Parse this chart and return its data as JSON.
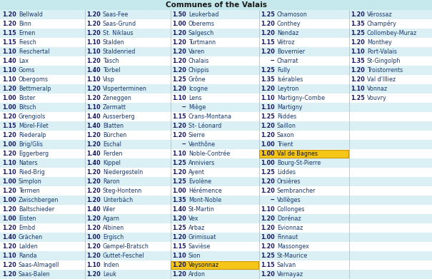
{
  "title": "Communes of the Valais",
  "background_color": "#c5e8ed",
  "row_bg_light": "#daf0f4",
  "row_bg_white": "#ffffff",
  "highlight_orange": "#f5c518",
  "text_color": "#1a1a5e",
  "name_color": "#1a3a6e",
  "sep_color": "#a0c8d0",
  "title_color": "#1a1a1a",
  "columns": [
    {
      "coef": "1.20",
      "name": "Bellwald"
    },
    {
      "coef": "1.20",
      "name": "Binn"
    },
    {
      "coef": "1.15",
      "name": "Ernen"
    },
    {
      "coef": "1.15",
      "name": "Fiesch"
    },
    {
      "coef": "1.10",
      "name": "Fieschertal"
    },
    {
      "coef": "1.40",
      "name": "Lax"
    },
    {
      "coef": "1.10",
      "name": "Goms"
    },
    {
      "coef": "1.10",
      "name": "Obergoms"
    },
    {
      "coef": "1.20",
      "name": "Bettmeralp"
    },
    {
      "coef": "1.00",
      "name": "Bister"
    },
    {
      "coef": "1.00",
      "name": "Bitsch"
    },
    {
      "coef": "1.20",
      "name": "Grengiols"
    },
    {
      "coef": "1.15",
      "name": "Mörel-Filet"
    },
    {
      "coef": "1.20",
      "name": "Riederalp"
    },
    {
      "coef": "1.00",
      "name": "Brig/Glis"
    },
    {
      "coef": "1.20",
      "name": "Eggerberg"
    },
    {
      "coef": "1.10",
      "name": "Naters"
    },
    {
      "coef": "1.10",
      "name": "Ried-Brig"
    },
    {
      "coef": "1.00",
      "name": "Simplon"
    },
    {
      "coef": "1.20",
      "name": "Termen"
    },
    {
      "coef": "1.00",
      "name": "Zwischbergen"
    },
    {
      "coef": "1.20",
      "name": "Baltschieder"
    },
    {
      "coef": "1.00",
      "name": "Eisten"
    },
    {
      "coef": "1.20",
      "name": "Embd"
    },
    {
      "coef": "1.40",
      "name": "Grächen"
    },
    {
      "coef": "1.20",
      "name": "Lalden"
    },
    {
      "coef": "1.10",
      "name": "Randa"
    },
    {
      "coef": "1.20",
      "name": "Saas-Almagell"
    },
    {
      "coef": "1.20",
      "name": "Saas-Balen"
    }
  ],
  "col2": [
    {
      "coef": "1.20",
      "name": "Saas-Fee"
    },
    {
      "coef": "1.20",
      "name": "Saas-Grund"
    },
    {
      "coef": "1.20",
      "name": "St. Niklaus"
    },
    {
      "coef": "1.10",
      "name": "Stalden"
    },
    {
      "coef": "1.10",
      "name": "Staldenried"
    },
    {
      "coef": "1.20",
      "name": "Täsch"
    },
    {
      "coef": "1.40",
      "name": "Törbel"
    },
    {
      "coef": "1.10",
      "name": "Visp"
    },
    {
      "coef": "1.20",
      "name": "Visperterminen"
    },
    {
      "coef": "1.20",
      "name": "Zeneggen"
    },
    {
      "coef": "1.10",
      "name": "Zermatt"
    },
    {
      "coef": "1.40",
      "name": "Ausserberg"
    },
    {
      "coef": "1.40",
      "name": "Blatten"
    },
    {
      "coef": "1.20",
      "name": "Bürchen"
    },
    {
      "coef": "1.20",
      "name": "Eschal"
    },
    {
      "coef": "1.40",
      "name": "Ferden"
    },
    {
      "coef": "1.40",
      "name": "Kippel"
    },
    {
      "coef": "1.20",
      "name": "Niedergesteln"
    },
    {
      "coef": "1.20",
      "name": "Raron"
    },
    {
      "coef": "1.20",
      "name": "Steg-Hontenn"
    },
    {
      "coef": "1.20",
      "name": "Unterbäch"
    },
    {
      "coef": "1.40",
      "name": "Wier"
    },
    {
      "coef": "1.20",
      "name": "Agarn"
    },
    {
      "coef": "1.20",
      "name": "Albinen"
    },
    {
      "coef": "1.00",
      "name": "Ergisch"
    },
    {
      "coef": "1.20",
      "name": "Gampel-Bratsch"
    },
    {
      "coef": "1.20",
      "name": "Guttet-Feschel"
    },
    {
      "coef": "1.10",
      "name": "Inden"
    },
    {
      "coef": "1.20",
      "name": "Leuk"
    }
  ],
  "col3": [
    {
      "coef": "1.50",
      "name": "Leukerbad"
    },
    {
      "coef": "1.00",
      "name": "Oberems"
    },
    {
      "coef": "1.20",
      "name": "Salgesch"
    },
    {
      "coef": "1.20",
      "name": "Turtmann"
    },
    {
      "coef": "1.20",
      "name": "Varen"
    },
    {
      "coef": "1.20",
      "name": "Chalais"
    },
    {
      "coef": "1.20",
      "name": "Chippis"
    },
    {
      "coef": "1.25",
      "name": "Grône"
    },
    {
      "coef": "1.20",
      "name": "Icogne"
    },
    {
      "coef": "1.10",
      "name": "Lens"
    },
    {
      "coef": "--",
      "name": "Miège"
    },
    {
      "coef": "1.15",
      "name": "Crans-Montana"
    },
    {
      "coef": "1.20",
      "name": "St- Léonard"
    },
    {
      "coef": "1.20",
      "name": "Sierre"
    },
    {
      "coef": "--",
      "name": "Venthône"
    },
    {
      "coef": "1.10",
      "name": "Noble-Contrée"
    },
    {
      "coef": "1.25",
      "name": "Anniviers"
    },
    {
      "coef": "1.20",
      "name": "Ayent"
    },
    {
      "coef": "1.25",
      "name": "Evolène"
    },
    {
      "coef": "1.00",
      "name": "Hérémence"
    },
    {
      "coef": "1.35",
      "name": "Mont-Noble"
    },
    {
      "coef": "1.40",
      "name": "St-Martin"
    },
    {
      "coef": "1.20",
      "name": "Vex"
    },
    {
      "coef": "1.25",
      "name": "Arbaz"
    },
    {
      "coef": "1.20",
      "name": "Grimisuat"
    },
    {
      "coef": "1.15",
      "name": "Savièse"
    },
    {
      "coef": "1.10",
      "name": "Sion"
    },
    {
      "coef": "1.20",
      "name": "Veysonnaz",
      "highlight": true
    },
    {
      "coef": "1.20",
      "name": "Ardon"
    }
  ],
  "col4": [
    {
      "coef": "1.25",
      "name": "Chamoson"
    },
    {
      "coef": "1.20",
      "name": "Conthey"
    },
    {
      "coef": "1.20",
      "name": "Nendaz"
    },
    {
      "coef": "1.15",
      "name": "Vétroz"
    },
    {
      "coef": "1.20",
      "name": "Bovernier"
    },
    {
      "coef": "--",
      "name": "Charrat"
    },
    {
      "coef": "1.25",
      "name": "Fully"
    },
    {
      "coef": "1.35",
      "name": "Isérables"
    },
    {
      "coef": "1.20",
      "name": "Leytron"
    },
    {
      "coef": "1.10",
      "name": "Martigny-Combe"
    },
    {
      "coef": "1.10",
      "name": "Martigny"
    },
    {
      "coef": "1.25",
      "name": "Riddes"
    },
    {
      "coef": "1.20",
      "name": "Saillon"
    },
    {
      "coef": "1.20",
      "name": "Saxon"
    },
    {
      "coef": "1.00",
      "name": "Trient"
    },
    {
      "coef": "1.00",
      "name": "Val de Bagnes",
      "highlight": true
    },
    {
      "coef": "1.00",
      "name": "Bourg-St-Pierre"
    },
    {
      "coef": "1.25",
      "name": "Liddes"
    },
    {
      "coef": "1.20",
      "name": "Orsières"
    },
    {
      "coef": "1.20",
      "name": "Sembrancher"
    },
    {
      "coef": "--",
      "name": "Vollèges"
    },
    {
      "coef": "1.10",
      "name": "Collonges"
    },
    {
      "coef": "1.20",
      "name": "Dorénaz"
    },
    {
      "coef": "1.20",
      "name": "Evionnaz"
    },
    {
      "coef": "1.00",
      "name": "Finnaut"
    },
    {
      "coef": "1.20",
      "name": "Massongex"
    },
    {
      "coef": "1.25",
      "name": "St-Maurice"
    },
    {
      "coef": "1.15",
      "name": "Salvan"
    },
    {
      "coef": "1.20",
      "name": "Vernayaz"
    }
  ],
  "col5": [
    {
      "coef": "1.20",
      "name": "Vérossaz"
    },
    {
      "coef": "1.35",
      "name": "Champéry"
    },
    {
      "coef": "1.25",
      "name": "Collombey-Muraz"
    },
    {
      "coef": "1.20",
      "name": "Monthey"
    },
    {
      "coef": "1.10",
      "name": "Port-Valais"
    },
    {
      "coef": "1.35",
      "name": "St-Gingolph"
    },
    {
      "coef": "1.20",
      "name": "Troistorrents"
    },
    {
      "coef": "1.20",
      "name": "Val d'Illiez"
    },
    {
      "coef": "1.10",
      "name": "Vonnaz"
    },
    {
      "coef": "1.25",
      "name": "Vouvry"
    }
  ],
  "figsize": [
    6.05,
    3.91
  ],
  "dpi": 100
}
